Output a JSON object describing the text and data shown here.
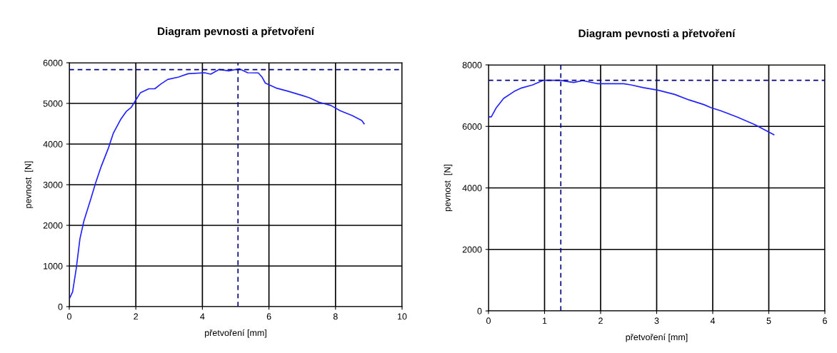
{
  "chart_data": [
    {
      "type": "line",
      "title": "Diagram pevnosti a přetvoření",
      "xlabel": "přetvoření [mm]",
      "ylabel": "pevnost  [N]",
      "xlim": [
        0,
        10
      ],
      "xticks": [
        0,
        2,
        4,
        6,
        8,
        10
      ],
      "ylim": [
        0,
        6000
      ],
      "yticks": [
        0,
        1000,
        2000,
        3000,
        4000,
        5000,
        6000
      ],
      "grid": true,
      "legend": false,
      "marker": "none",
      "line_style": "solid",
      "series": [
        {
          "color": "#2222ff",
          "x": [
            0,
            0.1,
            0.21,
            0.32,
            0.44,
            0.64,
            0.79,
            0.96,
            1.18,
            1.32,
            1.54,
            1.71,
            1.86,
            2.02,
            2.14,
            2.39,
            2.57,
            2.75,
            2.96,
            3.29,
            3.57,
            4.07,
            4.25,
            4.5,
            4.79,
            5.11,
            5.36,
            5.68,
            5.79,
            5.89,
            6.21,
            6.57,
            7.0,
            7.21,
            7.5,
            7.86,
            8.14,
            8.5,
            8.79,
            8.86
          ],
          "values": [
            190,
            360,
            940,
            1670,
            2110,
            2630,
            3040,
            3450,
            3910,
            4260,
            4600,
            4800,
            4900,
            5110,
            5265,
            5360,
            5360,
            5475,
            5590,
            5650,
            5730,
            5755,
            5720,
            5835,
            5800,
            5850,
            5755,
            5750,
            5650,
            5500,
            5380,
            5300,
            5195,
            5140,
            5030,
            4950,
            4820,
            4700,
            4580,
            4500
          ]
        }
      ],
      "ref_lines": [
        {
          "axis": "y",
          "value": 5830,
          "color": "#000080",
          "line_style": "dashed"
        },
        {
          "axis": "x",
          "value": 5.07,
          "color": "#000080",
          "line_style": "dashed"
        }
      ]
    },
    {
      "type": "line",
      "title": "Diagram pevnosti a přetvoření",
      "xlabel": "přetvoření [mm]",
      "ylabel": "pevnost  [N]",
      "xlim": [
        0,
        6
      ],
      "xticks": [
        0,
        1,
        2,
        3,
        4,
        5,
        6
      ],
      "ylim": [
        0,
        8000
      ],
      "yticks": [
        0,
        2000,
        4000,
        6000,
        8000
      ],
      "grid": true,
      "legend": false,
      "marker": "none",
      "line_style": "solid",
      "series": [
        {
          "color": "#2222ff",
          "x": [
            0,
            0.05,
            0.14,
            0.27,
            0.46,
            0.59,
            0.79,
            0.98,
            1.29,
            1.37,
            1.52,
            1.68,
            1.94,
            2.41,
            2.54,
            2.76,
            3.02,
            3.32,
            3.58,
            3.84,
            3.97,
            4.14,
            4.44,
            4.75,
            5.09
          ],
          "values": [
            6310,
            6310,
            6610,
            6910,
            7140,
            7250,
            7350,
            7500,
            7500,
            7470,
            7430,
            7490,
            7390,
            7390,
            7350,
            7260,
            7180,
            7040,
            6860,
            6710,
            6610,
            6510,
            6300,
            6060,
            5730
          ]
        }
      ],
      "ref_lines": [
        {
          "axis": "y",
          "value": 7500,
          "color": "#000080",
          "line_style": "dashed"
        },
        {
          "axis": "x",
          "value": 1.29,
          "color": "#000080",
          "line_style": "dashed"
        }
      ]
    }
  ]
}
